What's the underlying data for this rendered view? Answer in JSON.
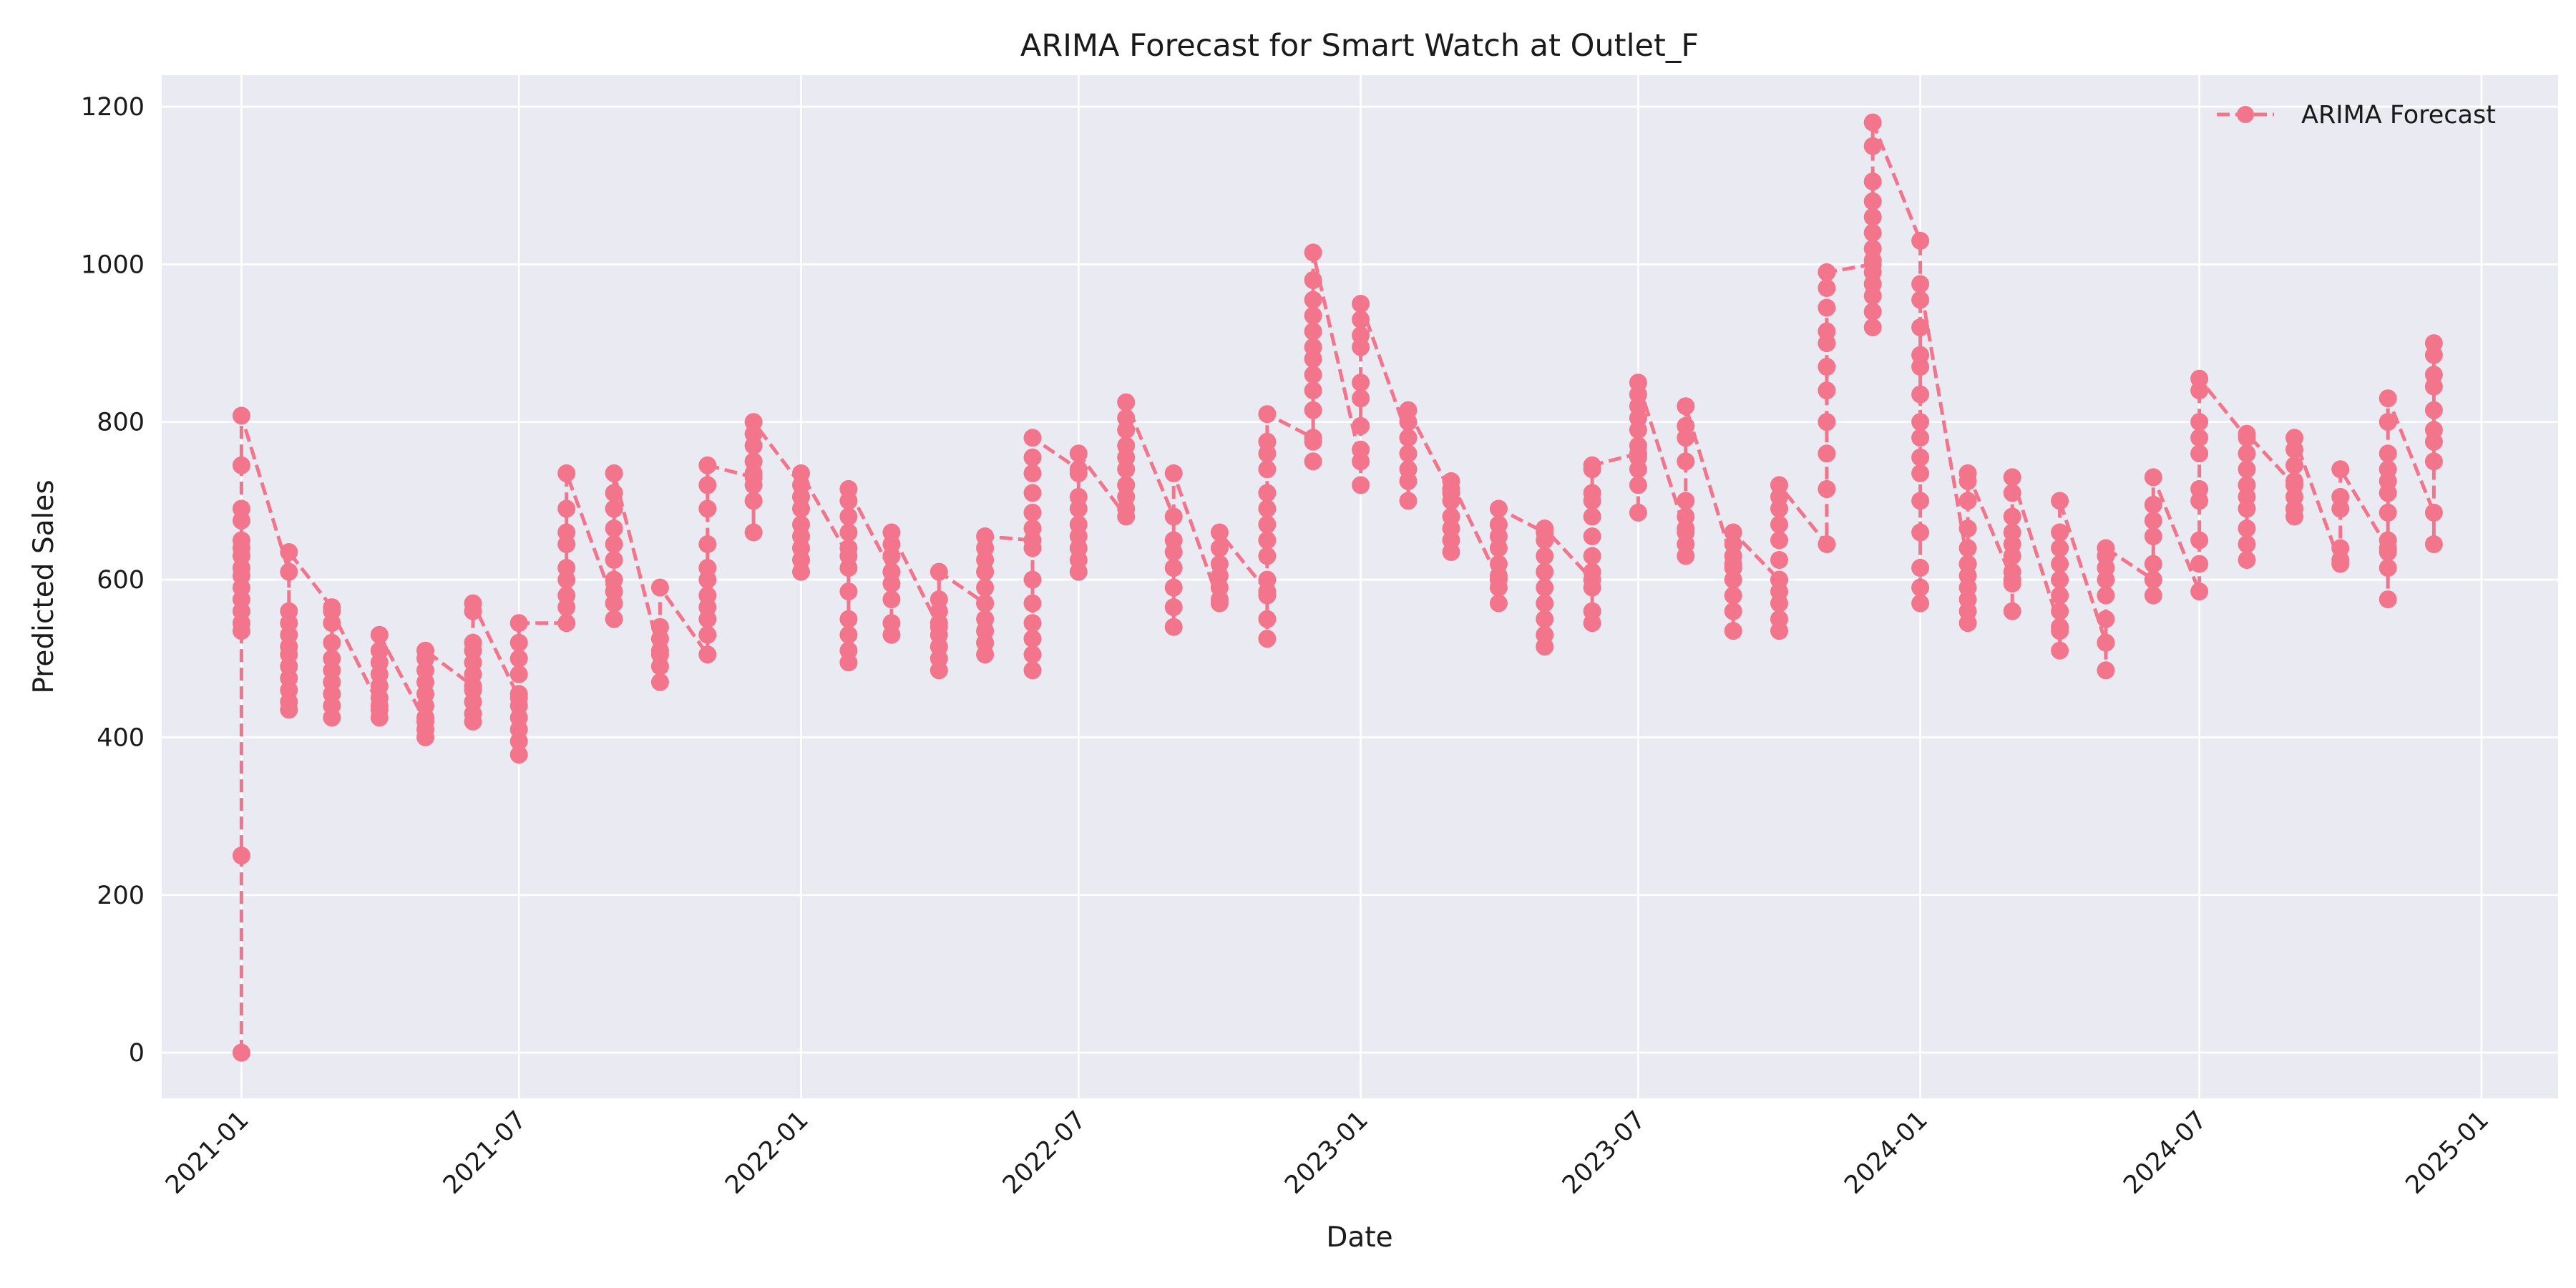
{
  "chart_data": {
    "type": "line",
    "title": "ARIMA Forecast for Smart Watch at Outlet_F",
    "xlabel": "Date",
    "ylabel": "Predicted Sales",
    "xlim": [
      "2020-11-10",
      "2025-02-20"
    ],
    "ylim": [
      -58,
      1240
    ],
    "grid": true,
    "legend_position": "top-right",
    "background_color": "#eaeaf2",
    "series_color": "#f3758c",
    "line_style": "dashed",
    "marker": "circle",
    "x_ticks": [
      {
        "date": "2021-01-01",
        "label": "2021-01"
      },
      {
        "date": "2021-07-01",
        "label": "2021-07"
      },
      {
        "date": "2022-01-01",
        "label": "2022-01"
      },
      {
        "date": "2022-07-01",
        "label": "2022-07"
      },
      {
        "date": "2023-01-01",
        "label": "2023-01"
      },
      {
        "date": "2023-07-01",
        "label": "2023-07"
      },
      {
        "date": "2024-01-01",
        "label": "2024-01"
      },
      {
        "date": "2024-07-01",
        "label": "2024-07"
      },
      {
        "date": "2025-01-01",
        "label": "2025-01"
      }
    ],
    "y_ticks": [
      {
        "value": 0,
        "label": "0"
      },
      {
        "value": 200,
        "label": "200"
      },
      {
        "value": 400,
        "label": "400"
      },
      {
        "value": 600,
        "label": "600"
      },
      {
        "value": 800,
        "label": "800"
      },
      {
        "value": 1000,
        "label": "1000"
      },
      {
        "value": 1200,
        "label": "1200"
      }
    ],
    "series": [
      {
        "name": "ARIMA Forecast",
        "groups": [
          {
            "date": "2021-01-01",
            "values": [
              0,
              250,
              535,
              545,
              560,
              575,
              590,
              605,
              615,
              630,
              640,
              650,
              675,
              690,
              745,
              808
            ]
          },
          {
            "date": "2021-02-01",
            "values": [
              610,
              435,
              445,
              460,
              475,
              490,
              505,
              515,
              530,
              545,
              560,
              635
            ]
          },
          {
            "date": "2021-03-01",
            "values": [
              565,
              425,
              440,
              455,
              470,
              485,
              500,
              520,
              545,
              560
            ]
          },
          {
            "date": "2021-04-01",
            "values": [
              440,
              425,
              435,
              450,
              465,
              480,
              495,
              510,
              530
            ]
          },
          {
            "date": "2021-05-01",
            "values": [
              420,
              400,
              410,
              425,
              440,
              455,
              470,
              485,
              500,
              510
            ]
          },
          {
            "date": "2021-06-01",
            "values": [
              465,
              420,
              430,
              445,
              460,
              480,
              495,
              510,
              520,
              560,
              570
            ]
          },
          {
            "date": "2021-07-01",
            "values": [
              450,
              378,
              395,
              410,
              425,
              440,
              455,
              480,
              500,
              520,
              545
            ]
          },
          {
            "date": "2021-08-01",
            "values": [
              545,
              565,
              580,
              600,
              615,
              645,
              660,
              690,
              735
            ]
          },
          {
            "date": "2021-09-01",
            "values": [
              570,
              550,
              585,
              600,
              625,
              645,
              665,
              690,
              710,
              735
            ]
          },
          {
            "date": "2021-10-01",
            "values": [
              505,
              470,
              490,
              510,
              525,
              540,
              590
            ]
          },
          {
            "date": "2021-11-01",
            "values": [
              505,
              530,
              550,
              565,
              580,
              600,
              615,
              645,
              690,
              720,
              745
            ]
          },
          {
            "date": "2021-12-01",
            "values": [
              730,
              660,
              700,
              720,
              735,
              750,
              770,
              785,
              800
            ]
          },
          {
            "date": "2022-01-01",
            "values": [
              720,
              610,
              625,
              640,
              655,
              670,
              690,
              705,
              735
            ]
          },
          {
            "date": "2022-02-01",
            "values": [
              630,
              495,
              510,
              530,
              550,
              585,
              615,
              640,
              660,
              680,
              700,
              715
            ]
          },
          {
            "date": "2022-03-01",
            "values": [
              610,
              530,
              545,
              575,
              595,
              610,
              630,
              645,
              660
            ]
          },
          {
            "date": "2022-04-01",
            "values": [
              540,
              485,
              500,
              515,
              530,
              545,
              560,
              575,
              610
            ]
          },
          {
            "date": "2022-05-01",
            "values": [
              570,
              505,
              520,
              535,
              550,
              570,
              590,
              610,
              625,
              640,
              655
            ]
          },
          {
            "date": "2022-06-01",
            "values": [
              650,
              485,
              505,
              525,
              545,
              570,
              600,
              640,
              665,
              685,
              710,
              735,
              755,
              780
            ]
          },
          {
            "date": "2022-07-01",
            "values": [
              740,
              610,
              625,
              640,
              655,
              670,
              690,
              705,
              735,
              760
            ]
          },
          {
            "date": "2022-08-01",
            "values": [
              680,
              690,
              705,
              720,
              740,
              755,
              770,
              790,
              805,
              825
            ]
          },
          {
            "date": "2022-09-01",
            "values": [
              680,
              540,
              565,
              590,
              615,
              635,
              650,
              735
            ]
          },
          {
            "date": "2022-10-01",
            "values": [
              570,
              575,
              590,
              605,
              620,
              640,
              660
            ]
          },
          {
            "date": "2022-11-01",
            "values": [
              585,
              525,
              550,
              580,
              600,
              630,
              650,
              670,
              690,
              710,
              740,
              760,
              775,
              810
            ]
          },
          {
            "date": "2022-12-01",
            "values": [
              780,
              750,
              775,
              815,
              840,
              860,
              880,
              895,
              915,
              935,
              955,
              980,
              1015
            ]
          },
          {
            "date": "2023-01-01",
            "values": [
              750,
              720,
              765,
              795,
              830,
              850,
              895,
              910,
              930,
              950
            ]
          },
          {
            "date": "2023-02-01",
            "values": [
              780,
              700,
              725,
              740,
              760,
              780,
              800,
              815
            ]
          },
          {
            "date": "2023-03-01",
            "values": [
              710,
              635,
              650,
              665,
              680,
              700,
              715,
              725
            ]
          },
          {
            "date": "2023-04-01",
            "values": [
              600,
              570,
              590,
              605,
              620,
              640,
              655,
              670,
              690
            ]
          },
          {
            "date": "2023-05-01",
            "values": [
              660,
              515,
              530,
              550,
              570,
              590,
              610,
              630,
              650,
              665
            ]
          },
          {
            "date": "2023-06-01",
            "values": [
              600,
              545,
              560,
              590,
              610,
              630,
              655,
              680,
              700,
              710,
              740,
              745
            ]
          },
          {
            "date": "2023-07-01",
            "values": [
              760,
              685,
              720,
              740,
              755,
              770,
              790,
              805,
              820,
              835,
              850
            ]
          },
          {
            "date": "2023-08-01",
            "values": [
              660,
              630,
              645,
              665,
              680,
              700,
              750,
              780,
              795,
              820
            ]
          },
          {
            "date": "2023-09-01",
            "values": [
              620,
              535,
              560,
              580,
              600,
              615,
              630,
              645,
              660
            ]
          },
          {
            "date": "2023-10-01",
            "values": [
              600,
              535,
              550,
              570,
              585,
              600,
              625,
              650,
              670,
              690,
              705,
              720
            ]
          },
          {
            "date": "2023-11-01",
            "values": [
              645,
              715,
              760,
              800,
              840,
              870,
              900,
              915,
              945,
              970,
              990
            ]
          },
          {
            "date": "2023-12-01",
            "values": [
              1000,
              920,
              940,
              960,
              975,
              990,
              1005,
              1020,
              1040,
              1060,
              1080,
              1105,
              1150,
              1180
            ]
          },
          {
            "date": "2024-01-01",
            "values": [
              1030,
              570,
              590,
              615,
              660,
              700,
              735,
              755,
              780,
              800,
              835,
              870,
              885,
              920,
              955,
              975
            ]
          },
          {
            "date": "2024-02-01",
            "values": [
              620,
              545,
              560,
              575,
              590,
              605,
              620,
              640,
              665,
              700,
              725,
              735
            ]
          },
          {
            "date": "2024-03-01",
            "values": [
              600,
              560,
              595,
              610,
              630,
              645,
              660,
              680,
              710,
              730
            ]
          },
          {
            "date": "2024-04-01",
            "values": [
              540,
              510,
              535,
              560,
              580,
              600,
              620,
              640,
              660,
              700
            ]
          },
          {
            "date": "2024-05-01",
            "values": [
              520,
              485,
              520,
              550,
              580,
              600,
              615,
              630,
              640
            ]
          },
          {
            "date": "2024-06-01",
            "values": [
              600,
              580,
              600,
              620,
              655,
              675,
              695,
              730
            ]
          },
          {
            "date": "2024-07-01",
            "values": [
              585,
              620,
              650,
              700,
              715,
              760,
              780,
              800,
              840,
              855
            ]
          },
          {
            "date": "2024-08-01",
            "values": [
              780,
              625,
              645,
              665,
              690,
              705,
              720,
              740,
              760,
              785
            ]
          },
          {
            "date": "2024-09-01",
            "values": [
              720,
              680,
              690,
              705,
              725,
              745,
              765,
              780
            ]
          },
          {
            "date": "2024-10-01",
            "values": [
              620,
              625,
              640,
              690,
              705,
              740
            ]
          },
          {
            "date": "2024-11-01",
            "values": [
              640,
              575,
              615,
              635,
              650,
              685,
              710,
              725,
              740,
              760,
              800,
              830
            ]
          },
          {
            "date": "2024-12-01",
            "values": [
              685,
              645,
              750,
              775,
              790,
              815,
              845,
              860,
              885,
              900
            ]
          }
        ]
      }
    ]
  }
}
